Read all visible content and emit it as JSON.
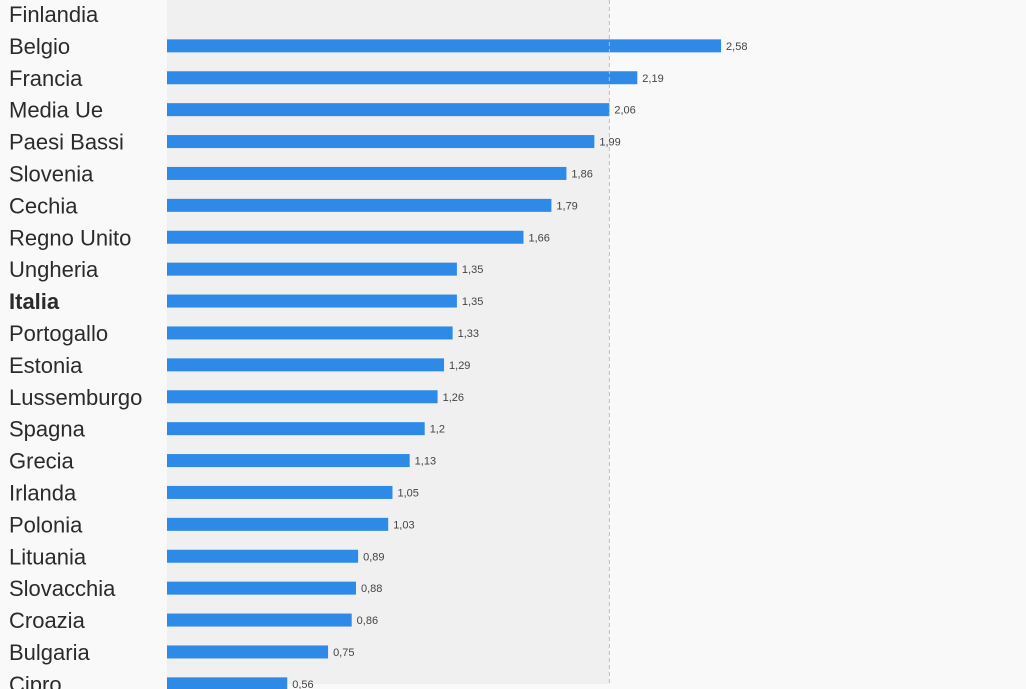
{
  "chart_data": {
    "type": "bar",
    "orientation": "horizontal",
    "categories": [
      "Finlandia",
      "Belgio",
      "Francia",
      "Media Ue",
      "Paesi Bassi",
      "Slovenia",
      "Cechia",
      "Regno Unito",
      "Ungheria",
      "Italia",
      "Portogallo",
      "Estonia",
      "Lussemburgo",
      "Spagna",
      "Grecia",
      "Irlanda",
      "Polonia",
      "Lituania",
      "Slovacchia",
      "Croazia",
      "Bulgaria",
      "Cipro"
    ],
    "values": [
      null,
      2.58,
      2.19,
      2.06,
      1.99,
      1.86,
      1.79,
      1.66,
      1.35,
      1.35,
      1.33,
      1.29,
      1.26,
      1.2,
      1.13,
      1.05,
      1.03,
      0.89,
      0.88,
      0.86,
      0.75,
      0.56
    ],
    "value_labels": [
      "",
      "2,58",
      "2,19",
      "2,06",
      "1,99",
      "1,86",
      "1,79",
      "1,66",
      "1,35",
      "1,35",
      "1,33",
      "1,29",
      "1,26",
      "1,2",
      "1,13",
      "1,05",
      "1,03",
      "0,89",
      "0,88",
      "0,86",
      "0,75",
      "0,56"
    ],
    "highlight_category": "Italia",
    "reference_value": 2.06,
    "xlim": [
      0,
      4
    ],
    "grid": false,
    "colors": {
      "bar": "#2e8ae6",
      "reference_line": "#f2a9a9",
      "shaded_band": "#f0f0f0",
      "background": "#f9f9f9"
    }
  }
}
